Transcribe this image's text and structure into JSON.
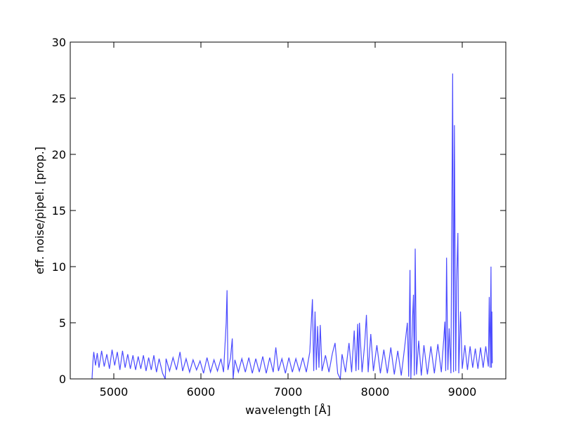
{
  "chart_data": {
    "type": "line",
    "xlabel": "wavelength [Å]",
    "ylabel": "eff. noise/pipel. [prop.]",
    "xlim": [
      4500,
      9500
    ],
    "xticks": [
      5000,
      6000,
      7000,
      8000,
      9000
    ],
    "ylim": [
      0,
      30
    ],
    "yticks": [
      0,
      5,
      10,
      15,
      20,
      25,
      30
    ],
    "color": "#4b4bff",
    "x": [
      4750,
      4760,
      4770,
      4790,
      4810,
      4830,
      4860,
      4890,
      4920,
      4950,
      4980,
      5010,
      5040,
      5070,
      5100,
      5130,
      5160,
      5190,
      5220,
      5250,
      5280,
      5310,
      5340,
      5370,
      5400,
      5430,
      5460,
      5490,
      5520,
      5560,
      5590,
      5600,
      5640,
      5680,
      5720,
      5760,
      5790,
      5830,
      5870,
      5910,
      5950,
      5990,
      6030,
      6070,
      6110,
      6150,
      6190,
      6230,
      6260,
      6290,
      6300,
      6310,
      6340,
      6360,
      6370,
      6390,
      6430,
      6470,
      6510,
      6550,
      6590,
      6630,
      6670,
      6710,
      6750,
      6790,
      6830,
      6860,
      6890,
      6930,
      6970,
      7010,
      7050,
      7090,
      7130,
      7170,
      7210,
      7250,
      7280,
      7295,
      7310,
      7325,
      7340,
      7355,
      7370,
      7390,
      7430,
      7470,
      7510,
      7540,
      7570,
      7600,
      7620,
      7660,
      7700,
      7730,
      7760,
      7780,
      7800,
      7810,
      7820,
      7850,
      7880,
      7900,
      7920,
      7950,
      7980,
      8020,
      8060,
      8100,
      8140,
      8180,
      8220,
      8260,
      8300,
      8340,
      8370,
      8385,
      8400,
      8410,
      8430,
      8440,
      8450,
      8460,
      8475,
      8500,
      8530,
      8560,
      8600,
      8640,
      8680,
      8720,
      8760,
      8790,
      8800,
      8810,
      8820,
      8835,
      8850,
      8870,
      8890,
      8900,
      8910,
      8925,
      8935,
      8950,
      8960,
      8980,
      9000,
      9030,
      9060,
      9090,
      9120,
      9150,
      9180,
      9210,
      9240,
      9270,
      9300,
      9310,
      9320,
      9330,
      9335,
      9340,
      9345
    ],
    "values": [
      0,
      1.5,
      2.4,
      1.2,
      2.3,
      1.0,
      2.5,
      1.1,
      2.2,
      0.9,
      2.6,
      1.2,
      2.4,
      0.8,
      2.5,
      1.0,
      2.2,
      0.9,
      2.1,
      0.8,
      2.0,
      0.9,
      2.1,
      0.7,
      1.9,
      0.8,
      2.1,
      0.6,
      1.8,
      0.5,
      0,
      1.8,
      0.7,
      1.9,
      0.8,
      2.4,
      0.7,
      1.8,
      0.6,
      1.7,
      0.8,
      1.6,
      0.5,
      1.9,
      0.6,
      1.7,
      0.7,
      1.8,
      0.6,
      5.0,
      7.9,
      0.8,
      1.9,
      3.6,
      0,
      1.7,
      0.6,
      1.8,
      0.6,
      1.9,
      0.5,
      1.8,
      0.6,
      2.0,
      0.5,
      1.9,
      0.6,
      2.8,
      0.7,
      1.8,
      0.5,
      1.9,
      0.6,
      1.8,
      0.7,
      1.9,
      0.6,
      2.4,
      7.1,
      0.7,
      6.0,
      0.8,
      4.7,
      1.0,
      4.8,
      0.7,
      2.1,
      0.6,
      2.3,
      3.2,
      0.5,
      0,
      2.2,
      0.6,
      3.2,
      0.6,
      4.3,
      0.7,
      4.9,
      0.8,
      5.0,
      0.6,
      3.1,
      5.7,
      0.6,
      4.0,
      0.7,
      3.0,
      0.5,
      2.6,
      0.5,
      2.8,
      0.4,
      2.5,
      0.3,
      2.9,
      5.0,
      0.2,
      9.7,
      0,
      5.5,
      7.5,
      0.3,
      11.6,
      0.4,
      3.4,
      0.3,
      3.0,
      0.4,
      2.9,
      0.5,
      3.1,
      0.6,
      3.8,
      5.1,
      0.7,
      10.8,
      0.8,
      4.5,
      0.5,
      27.2,
      0.6,
      22.6,
      0.7,
      8.6,
      13.0,
      0.5,
      6.0,
      0.9,
      3.0,
      0.8,
      2.9,
      1.0,
      2.7,
      0.9,
      2.8,
      1.0,
      2.9,
      1.1,
      7.3,
      1.0,
      10.0,
      1.0,
      6.0,
      1.4
    ]
  }
}
